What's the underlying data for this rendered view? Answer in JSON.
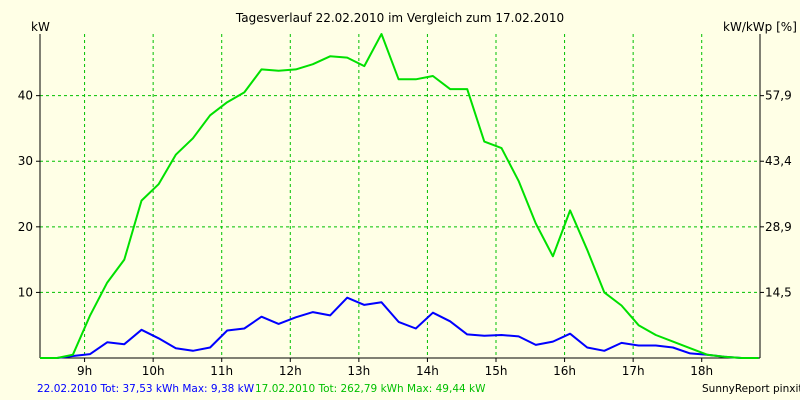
{
  "chart_data": {
    "type": "line",
    "title": "Tagesverlauf 22.02.2010 im Vergleich zum 17.02.2010",
    "ylabel_left": "kW",
    "ylabel_right": "kW/kWp [%]",
    "xlim": [
      8.35,
      18.85
    ],
    "ylim": [
      0,
      49.4
    ],
    "x_ticks": [
      9,
      10,
      11,
      12,
      13,
      14,
      15,
      16,
      17,
      18
    ],
    "x_tick_labels": [
      "9h",
      "10h",
      "11h",
      "12h",
      "13h",
      "14h",
      "15h",
      "16h",
      "17h",
      "18h"
    ],
    "y_ticks": [
      10,
      20,
      30,
      40
    ],
    "y_tick_labels": [
      "10",
      "20",
      "30",
      "40"
    ],
    "y_right_ticks": [
      10,
      20,
      30,
      40
    ],
    "y_right_tick_labels": [
      "14,5",
      "28,9",
      "43,4",
      "57,9"
    ],
    "grid": true,
    "series": [
      {
        "name": "22.02.2010",
        "color": "#0000ff",
        "x": [
          8.35,
          8.6,
          8.83,
          9.08,
          9.33,
          9.58,
          9.83,
          10.08,
          10.33,
          10.58,
          10.83,
          11.08,
          11.33,
          11.58,
          11.83,
          12.08,
          12.33,
          12.58,
          12.83,
          13.08,
          13.33,
          13.58,
          13.83,
          14.08,
          14.33,
          14.58,
          14.83,
          15.08,
          15.33,
          15.58,
          15.83,
          16.08,
          16.33,
          16.58,
          16.83,
          17.08,
          17.33,
          17.58,
          17.83,
          18.08,
          18.33,
          18.58,
          18.83
        ],
        "y": [
          0,
          0,
          0.3,
          0.6,
          2.4,
          2.1,
          4.3,
          3.0,
          1.5,
          1.1,
          1.6,
          4.2,
          4.5,
          6.3,
          5.2,
          6.2,
          7.0,
          6.5,
          9.2,
          8.1,
          8.5,
          5.5,
          4.5,
          6.9,
          5.6,
          3.6,
          3.4,
          3.5,
          3.3,
          2.0,
          2.5,
          3.7,
          1.6,
          1.1,
          2.3,
          1.9,
          1.9,
          1.6,
          0.7,
          0.5,
          0.2,
          0,
          0
        ]
      },
      {
        "name": "17.02.2010",
        "color": "#00e000",
        "x": [
          8.35,
          8.6,
          8.83,
          9.08,
          9.33,
          9.58,
          9.83,
          10.08,
          10.33,
          10.58,
          10.83,
          11.08,
          11.33,
          11.58,
          11.83,
          12.08,
          12.33,
          12.58,
          12.83,
          13.08,
          13.33,
          13.58,
          13.83,
          14.08,
          14.33,
          14.58,
          14.83,
          15.08,
          15.33,
          15.58,
          15.83,
          16.08,
          16.33,
          16.58,
          16.83,
          17.08,
          17.33,
          17.58,
          17.83,
          18.08,
          18.33,
          18.58,
          18.83
        ],
        "y": [
          0,
          0,
          0.5,
          6.5,
          11.5,
          15.0,
          24.0,
          26.5,
          31.0,
          33.5,
          37.0,
          39.0,
          40.5,
          44.0,
          43.8,
          44.0,
          44.8,
          46.0,
          45.8,
          44.5,
          49.4,
          42.5,
          42.5,
          43.0,
          41.0,
          41.0,
          33.0,
          32.0,
          27.0,
          20.5,
          15.5,
          22.5,
          16.5,
          10.0,
          8.0,
          5.0,
          3.5,
          2.5,
          1.5,
          0.5,
          0.2,
          0,
          0
        ]
      }
    ]
  },
  "footer": {
    "blue_text": "22.02.2010 Tot: 37,53 kWh Max: 9,38 kW",
    "green_text": "17.02.2010 Tot: 262,79 kWh Max: 49,44 kW",
    "credit": "SunnyReport pinxit"
  },
  "colors": {
    "background": "#ffffe6",
    "grid": "#00c000",
    "axis": "#000000",
    "blue_footer": "#0000ff",
    "green_footer": "#00c000"
  }
}
